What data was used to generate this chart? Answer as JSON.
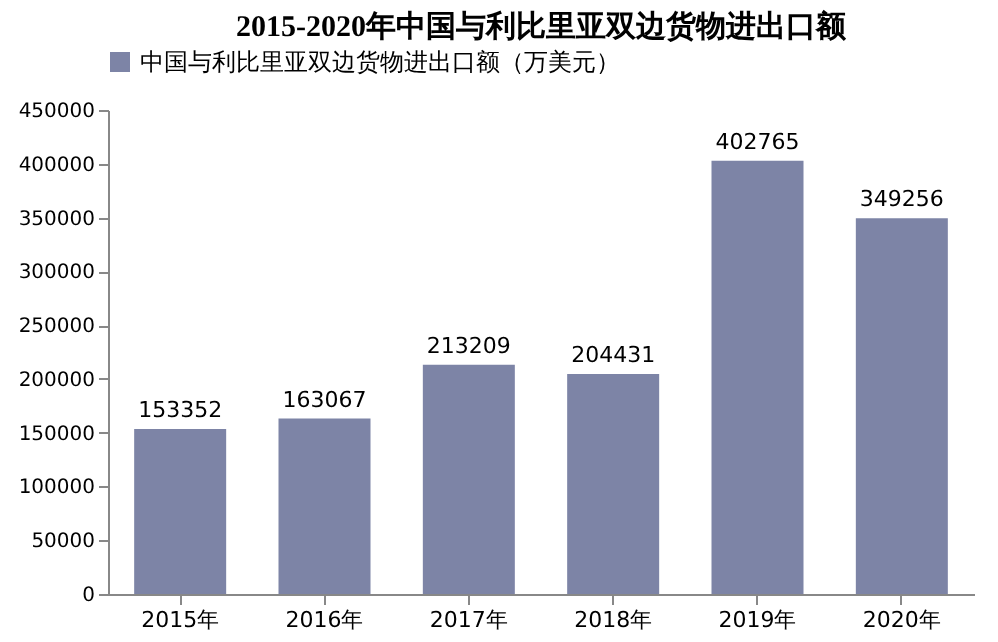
{
  "chart_data": {
    "type": "bar",
    "title": "2015-2020年中国与利比里亚双边货物进出口额",
    "categories": [
      "2015年",
      "2016年",
      "2017年",
      "2018年",
      "2019年",
      "2020年"
    ],
    "series": [
      {
        "name": "中国与利比里亚双边货物进出口额（万美元）",
        "color": "#7d84a6",
        "values": [
          153352,
          163067,
          213209,
          204431,
          402765,
          349256
        ]
      }
    ],
    "ylim": [
      0,
      450000
    ],
    "yticks": [
      0,
      50000,
      100000,
      150000,
      200000,
      250000,
      300000,
      350000,
      400000,
      450000
    ],
    "grid": false,
    "legend": "top",
    "data_labels": true
  }
}
